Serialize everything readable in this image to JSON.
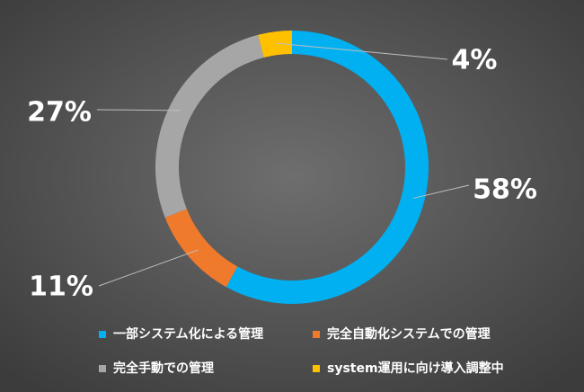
{
  "chart_data": {
    "type": "donut",
    "categories": [
      "一部システム化による管理",
      "完全自動化システムでの管理",
      "完全手動での管理",
      "system運用に向け導入調整中"
    ],
    "values": [
      58,
      11,
      27,
      4
    ],
    "value_labels": [
      "58%",
      "11%",
      "27%",
      "4%"
    ],
    "colors": [
      "#00b0f0",
      "#f07a2c",
      "#a6a6a6",
      "#ffc000"
    ]
  }
}
